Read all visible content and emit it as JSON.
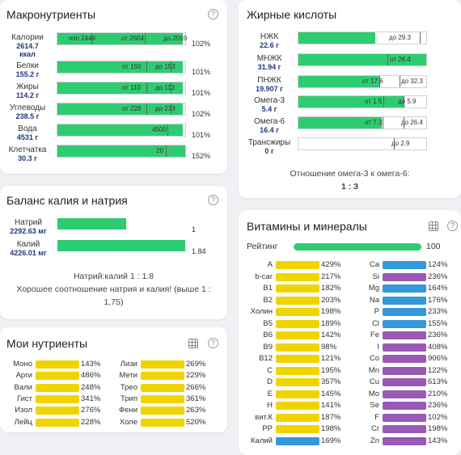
{
  "colors": {
    "green": "#2ecc71",
    "yellow": "#f0d400",
    "blue": "#3498db",
    "purple": "#9b59b6"
  },
  "macro": {
    "title": "Макронутриенты",
    "rows": [
      {
        "name": "Калории",
        "value": "2614.7",
        "unit": "ккал",
        "min": "min 2449",
        "from": "от 2504",
        "to": "до 2559",
        "pct": "102%",
        "fill": 0.98
      },
      {
        "name": "Белки",
        "value": "155.2 г",
        "from": "от 150",
        "to": "до 153",
        "pct": "101%",
        "fill": 0.98
      },
      {
        "name": "Жиры",
        "value": "114.2 г",
        "from": "от 110",
        "to": "до 113",
        "pct": "101%",
        "fill": 0.98
      },
      {
        "name": "Углеводы",
        "value": "238.5 г",
        "from": "от 228",
        "to": "до 233",
        "pct": "102%",
        "fill": 0.98
      },
      {
        "name": "Вода",
        "value": "4531 г",
        "mark": "4500",
        "pct": "101%",
        "fill": 0.98
      },
      {
        "name": "Клетчатка",
        "value": "30.3 г",
        "mark": "20",
        "pct": "152%",
        "fill": 1.0
      }
    ]
  },
  "fatty": {
    "title": "Жирные кислоты",
    "rows": [
      {
        "name": "НЖК",
        "value": "22.6 г",
        "to": "до 29.3",
        "fill": 0.6
      },
      {
        "name": "МНЖК",
        "value": "31.94 г",
        "from": "от 26.4",
        "fill": 1.0
      },
      {
        "name": "ПНЖК",
        "value": "19.907 г",
        "from": "от 17.6",
        "to": "до 32.3",
        "fill": 0.64
      },
      {
        "name": "Омега-3",
        "value": "5.4 г",
        "from": "от 1.5",
        "to": "до 5.9",
        "fill": 0.82
      },
      {
        "name": "Омега-6",
        "value": "16.4 г",
        "from": "от 7.3",
        "to": "до 26.4",
        "fill": 0.65
      },
      {
        "name": "Трансжиры",
        "value": "0 г",
        "to": "до 2.9",
        "fill": 0
      }
    ],
    "ratio_text": "Отношение омега-3 к омега-6:",
    "ratio_value": "1 : 3"
  },
  "balance": {
    "title": "Баланс калия и натрия",
    "rows": [
      {
        "name": "Натрий",
        "value": "2292.63 мг",
        "mark": "1",
        "fill": 0.54
      },
      {
        "name": "Калий",
        "value": "4226.01 мг",
        "mark": "1.84",
        "fill": 1.0
      }
    ],
    "ratio": "Натрий:калий 1 : 1.8",
    "note": "Хорошее соотношение натрия и калия! (выше 1 : 1,75)"
  },
  "vitamins": {
    "title": "Витамины и минералы",
    "rating_label": "Рейтинг",
    "rating_value": "100",
    "left": [
      {
        "name": "A",
        "pct": "429%",
        "color": "yellow"
      },
      {
        "name": "b-car",
        "pct": "217%",
        "color": "yellow"
      },
      {
        "name": "B1",
        "pct": "182%",
        "color": "yellow"
      },
      {
        "name": "B2",
        "pct": "203%",
        "color": "yellow"
      },
      {
        "name": "Холин",
        "pct": "198%",
        "color": "yellow"
      },
      {
        "name": "B5",
        "pct": "189%",
        "color": "yellow"
      },
      {
        "name": "B6",
        "pct": "142%",
        "color": "yellow"
      },
      {
        "name": "B9",
        "pct": "98%",
        "color": "yellow"
      },
      {
        "name": "B12",
        "pct": "121%",
        "color": "yellow"
      },
      {
        "name": "C",
        "pct": "195%",
        "color": "yellow"
      },
      {
        "name": "D",
        "pct": "357%",
        "color": "yellow"
      },
      {
        "name": "E",
        "pct": "145%",
        "color": "yellow"
      },
      {
        "name": "H",
        "pct": "141%",
        "color": "yellow"
      },
      {
        "name": "вит.К",
        "pct": "187%",
        "color": "yellow"
      },
      {
        "name": "PP",
        "pct": "198%",
        "color": "yellow"
      },
      {
        "name": "Калий",
        "pct": "169%",
        "color": "blue"
      }
    ],
    "right": [
      {
        "name": "Ca",
        "pct": "124%",
        "color": "blue"
      },
      {
        "name": "Si",
        "pct": "236%",
        "color": "purple"
      },
      {
        "name": "Mg",
        "pct": "164%",
        "color": "blue"
      },
      {
        "name": "Na",
        "pct": "176%",
        "color": "blue"
      },
      {
        "name": "P",
        "pct": "233%",
        "color": "blue"
      },
      {
        "name": "Cl",
        "pct": "155%",
        "color": "blue"
      },
      {
        "name": "Fe",
        "pct": "236%",
        "color": "purple"
      },
      {
        "name": "I",
        "pct": "408%",
        "color": "purple"
      },
      {
        "name": "Co",
        "pct": "906%",
        "color": "purple"
      },
      {
        "name": "Mn",
        "pct": "122%",
        "color": "purple"
      },
      {
        "name": "Cu",
        "pct": "613%",
        "color": "purple"
      },
      {
        "name": "Mo",
        "pct": "210%",
        "color": "purple"
      },
      {
        "name": "Se",
        "pct": "236%",
        "color": "purple"
      },
      {
        "name": "F",
        "pct": "102%",
        "color": "purple"
      },
      {
        "name": "Cr",
        "pct": "198%",
        "color": "purple"
      },
      {
        "name": "Zn",
        "pct": "143%",
        "color": "purple"
      }
    ]
  },
  "my": {
    "title": "Мои нутриенты",
    "left": [
      {
        "name": "Моно",
        "pct": "143%"
      },
      {
        "name": "Арги",
        "pct": "486%"
      },
      {
        "name": "Вали",
        "pct": "248%"
      },
      {
        "name": "Гист",
        "pct": "341%"
      },
      {
        "name": "Изол",
        "pct": "276%"
      },
      {
        "name": "Лейц",
        "pct": "228%"
      }
    ],
    "right": [
      {
        "name": "Лизи",
        "pct": "269%"
      },
      {
        "name": "Мети",
        "pct": "229%"
      },
      {
        "name": "Трео",
        "pct": "266%"
      },
      {
        "name": "Трип",
        "pct": "361%"
      },
      {
        "name": "Фени",
        "pct": "263%"
      },
      {
        "name": "Холе",
        "pct": "520%"
      }
    ]
  }
}
